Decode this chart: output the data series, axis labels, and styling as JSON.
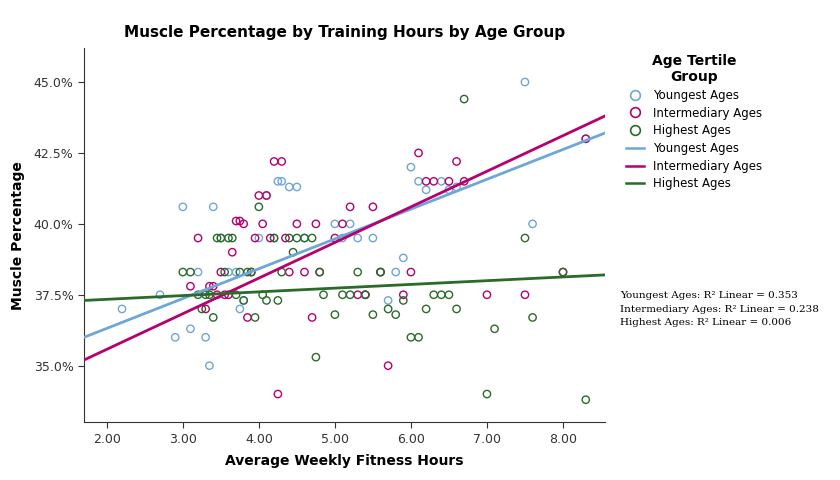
{
  "title": "Muscle Percentage by Training Hours by Age Group",
  "xlabel": "Average Weekly Fitness Hours",
  "ylabel": "Muscle Percentage",
  "legend_title": "Age Tertile\nGroup",
  "xlim": [
    1.7,
    8.55
  ],
  "ylim": [
    0.33,
    0.462
  ],
  "yticks": [
    0.35,
    0.375,
    0.4,
    0.425,
    0.45
  ],
  "xticks": [
    2.0,
    3.0,
    4.0,
    5.0,
    6.0,
    7.0,
    8.0
  ],
  "colors": {
    "youngest": "#6EA6D7",
    "intermediary": "#B5006E",
    "highest": "#2A6B2A"
  },
  "r2_text": "Youngest Ages: R² Linear = 0.353\nIntermediary Ages: R² Linear = 0.238\nHighest Ages: R² Linear = 0.006",
  "youngest_scatter": [
    [
      2.2,
      0.37
    ],
    [
      2.7,
      0.375
    ],
    [
      2.9,
      0.36
    ],
    [
      3.0,
      0.406
    ],
    [
      3.1,
      0.363
    ],
    [
      3.2,
      0.383
    ],
    [
      3.3,
      0.36
    ],
    [
      3.35,
      0.35
    ],
    [
      3.4,
      0.406
    ],
    [
      3.5,
      0.395
    ],
    [
      3.6,
      0.383
    ],
    [
      3.7,
      0.383
    ],
    [
      3.75,
      0.37
    ],
    [
      3.8,
      0.373
    ],
    [
      4.0,
      0.395
    ],
    [
      4.1,
      0.41
    ],
    [
      4.2,
      0.395
    ],
    [
      4.25,
      0.415
    ],
    [
      4.3,
      0.415
    ],
    [
      4.4,
      0.413
    ],
    [
      4.5,
      0.413
    ],
    [
      4.6,
      0.395
    ],
    [
      5.0,
      0.4
    ],
    [
      5.1,
      0.395
    ],
    [
      5.2,
      0.4
    ],
    [
      5.3,
      0.395
    ],
    [
      5.4,
      0.375
    ],
    [
      5.5,
      0.395
    ],
    [
      5.6,
      0.383
    ],
    [
      5.7,
      0.373
    ],
    [
      5.8,
      0.383
    ],
    [
      5.9,
      0.388
    ],
    [
      6.0,
      0.42
    ],
    [
      6.1,
      0.415
    ],
    [
      6.2,
      0.412
    ],
    [
      6.4,
      0.415
    ],
    [
      6.5,
      0.412
    ],
    [
      6.6,
      0.413
    ],
    [
      7.5,
      0.45
    ],
    [
      7.6,
      0.4
    ],
    [
      8.3,
      0.43
    ]
  ],
  "intermediary_scatter": [
    [
      3.1,
      0.378
    ],
    [
      3.2,
      0.395
    ],
    [
      3.3,
      0.37
    ],
    [
      3.35,
      0.378
    ],
    [
      3.4,
      0.378
    ],
    [
      3.45,
      0.375
    ],
    [
      3.5,
      0.383
    ],
    [
      3.55,
      0.375
    ],
    [
      3.6,
      0.375
    ],
    [
      3.65,
      0.39
    ],
    [
      3.7,
      0.401
    ],
    [
      3.75,
      0.401
    ],
    [
      3.8,
      0.4
    ],
    [
      3.85,
      0.367
    ],
    [
      3.9,
      0.383
    ],
    [
      3.95,
      0.395
    ],
    [
      4.0,
      0.41
    ],
    [
      4.05,
      0.4
    ],
    [
      4.1,
      0.41
    ],
    [
      4.15,
      0.395
    ],
    [
      4.2,
      0.422
    ],
    [
      4.25,
      0.34
    ],
    [
      4.3,
      0.422
    ],
    [
      4.35,
      0.395
    ],
    [
      4.4,
      0.383
    ],
    [
      4.5,
      0.4
    ],
    [
      4.6,
      0.383
    ],
    [
      4.7,
      0.367
    ],
    [
      4.75,
      0.4
    ],
    [
      4.8,
      0.383
    ],
    [
      5.0,
      0.395
    ],
    [
      5.1,
      0.4
    ],
    [
      5.2,
      0.406
    ],
    [
      5.3,
      0.375
    ],
    [
      5.4,
      0.375
    ],
    [
      5.5,
      0.406
    ],
    [
      5.6,
      0.383
    ],
    [
      5.7,
      0.35
    ],
    [
      5.9,
      0.375
    ],
    [
      6.0,
      0.383
    ],
    [
      6.1,
      0.425
    ],
    [
      6.2,
      0.415
    ],
    [
      6.3,
      0.415
    ],
    [
      6.5,
      0.415
    ],
    [
      6.6,
      0.422
    ],
    [
      6.7,
      0.415
    ],
    [
      7.0,
      0.375
    ],
    [
      7.5,
      0.375
    ],
    [
      8.0,
      0.383
    ],
    [
      8.3,
      0.43
    ]
  ],
  "highest_scatter": [
    [
      3.0,
      0.383
    ],
    [
      3.1,
      0.383
    ],
    [
      3.2,
      0.375
    ],
    [
      3.25,
      0.37
    ],
    [
      3.3,
      0.375
    ],
    [
      3.35,
      0.375
    ],
    [
      3.4,
      0.367
    ],
    [
      3.45,
      0.395
    ],
    [
      3.5,
      0.395
    ],
    [
      3.55,
      0.383
    ],
    [
      3.6,
      0.395
    ],
    [
      3.65,
      0.395
    ],
    [
      3.7,
      0.375
    ],
    [
      3.75,
      0.383
    ],
    [
      3.8,
      0.373
    ],
    [
      3.85,
      0.383
    ],
    [
      3.9,
      0.383
    ],
    [
      3.95,
      0.367
    ],
    [
      4.0,
      0.406
    ],
    [
      4.05,
      0.375
    ],
    [
      4.1,
      0.373
    ],
    [
      4.2,
      0.395
    ],
    [
      4.25,
      0.373
    ],
    [
      4.3,
      0.383
    ],
    [
      4.4,
      0.395
    ],
    [
      4.45,
      0.39
    ],
    [
      4.5,
      0.395
    ],
    [
      4.6,
      0.395
    ],
    [
      4.7,
      0.395
    ],
    [
      4.75,
      0.353
    ],
    [
      4.8,
      0.383
    ],
    [
      4.85,
      0.375
    ],
    [
      5.0,
      0.368
    ],
    [
      5.1,
      0.375
    ],
    [
      5.2,
      0.375
    ],
    [
      5.3,
      0.383
    ],
    [
      5.4,
      0.375
    ],
    [
      5.5,
      0.368
    ],
    [
      5.6,
      0.383
    ],
    [
      5.7,
      0.37
    ],
    [
      5.8,
      0.368
    ],
    [
      5.9,
      0.373
    ],
    [
      6.0,
      0.36
    ],
    [
      6.1,
      0.36
    ],
    [
      6.2,
      0.37
    ],
    [
      6.3,
      0.375
    ],
    [
      6.4,
      0.375
    ],
    [
      6.5,
      0.375
    ],
    [
      6.6,
      0.37
    ],
    [
      6.7,
      0.444
    ],
    [
      7.0,
      0.34
    ],
    [
      7.1,
      0.363
    ],
    [
      7.5,
      0.395
    ],
    [
      7.6,
      0.367
    ],
    [
      8.0,
      0.383
    ],
    [
      8.3,
      0.338
    ]
  ],
  "youngest_line": [
    [
      1.7,
      0.36
    ],
    [
      8.55,
      0.432
    ]
  ],
  "intermediary_line": [
    [
      1.7,
      0.352
    ],
    [
      8.55,
      0.438
    ]
  ],
  "highest_line": [
    [
      1.7,
      0.373
    ],
    [
      8.55,
      0.382
    ]
  ]
}
